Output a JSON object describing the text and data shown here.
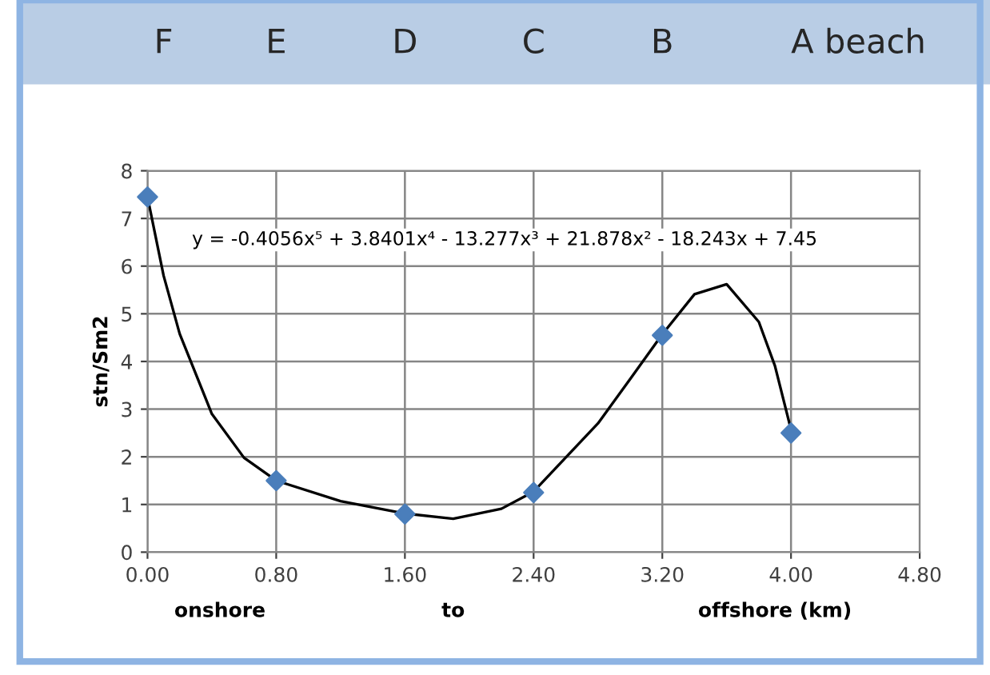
{
  "chart_data": {
    "type": "scatter",
    "ylabel": "stn/Sm2",
    "annotations": [
      "F",
      "E",
      "D",
      "C",
      "B",
      "A beach",
      "y = -0.4056x⁵ + 3.8401x⁴ - 13.277x³ + 21.878x² - 18.243x + 7.45",
      "onshore",
      "to",
      "offshore (km)"
    ],
    "series": [
      {
        "color": "#4a7ebb",
        "marker": "diamond",
        "x": [
          0.0,
          0.8,
          1.6,
          2.4,
          3.2,
          4.0
        ],
        "values": [
          7.45,
          1.5,
          0.8,
          1.25,
          4.55,
          2.5
        ]
      },
      {
        "type": "line",
        "color": "#000000",
        "marker": "none",
        "x": [
          0.0,
          0.1,
          0.2,
          0.4,
          0.6,
          0.8,
          1.2,
          1.6,
          1.9,
          2.2,
          2.4,
          2.8,
          3.0,
          3.2,
          3.4,
          3.6,
          3.8,
          3.9,
          4.0
        ],
        "values": [
          7.45,
          5.8,
          4.58,
          2.9,
          1.98,
          1.5,
          1.07,
          0.81,
          0.7,
          0.91,
          1.27,
          2.7,
          3.63,
          4.57,
          5.41,
          5.62,
          4.83,
          3.91,
          2.57
        ]
      }
    ],
    "xlim": [
      0,
      4.8
    ],
    "xticks": [
      {
        "value": 0,
        "label": "0.00"
      },
      {
        "value": 0.8,
        "label": "0.80"
      },
      {
        "value": 1.6,
        "label": "1.60"
      },
      {
        "value": 2.4,
        "label": "2.40"
      },
      {
        "value": 3.2,
        "label": "3.20"
      },
      {
        "value": 4.0,
        "label": "4.00"
      },
      {
        "value": 4.8,
        "label": "4.80"
      }
    ],
    "ylim": [
      0,
      8
    ],
    "yticks": [
      0,
      1,
      2,
      3,
      4,
      5,
      6,
      7,
      8
    ],
    "grid": true,
    "legend": false
  }
}
